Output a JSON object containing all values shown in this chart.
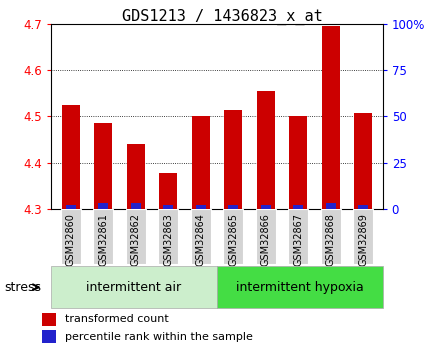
{
  "title": "GDS1213 / 1436823_x_at",
  "samples": [
    "GSM32860",
    "GSM32861",
    "GSM32862",
    "GSM32863",
    "GSM32864",
    "GSM32865",
    "GSM32866",
    "GSM32867",
    "GSM32868",
    "GSM32869"
  ],
  "transformed_count": [
    4.525,
    4.485,
    4.44,
    4.378,
    4.5,
    4.515,
    4.555,
    4.5,
    4.695,
    4.508
  ],
  "percentile_rank": [
    2,
    3,
    3,
    2,
    2,
    2,
    2,
    2,
    3,
    2
  ],
  "ylim_left": [
    4.3,
    4.7
  ],
  "ylim_right": [
    0,
    100
  ],
  "yticks_left": [
    4.3,
    4.4,
    4.5,
    4.6,
    4.7
  ],
  "yticks_right": [
    0,
    25,
    50,
    75,
    100
  ],
  "group1_label": "intermittent air",
  "group2_label": "intermittent hypoxia",
  "group1_count": 5,
  "group2_count": 5,
  "bar_color_red": "#cc0000",
  "bar_color_blue": "#2222cc",
  "group1_bg": "#cceecc",
  "group2_bg": "#44dd44",
  "stress_label": "stress",
  "legend_red": "transformed count",
  "legend_blue": "percentile rank within the sample",
  "bar_width": 0.55,
  "title_fontsize": 11,
  "axis_fontsize": 8.5,
  "sample_fontsize": 7,
  "group_fontsize": 9,
  "legend_fontsize": 8
}
